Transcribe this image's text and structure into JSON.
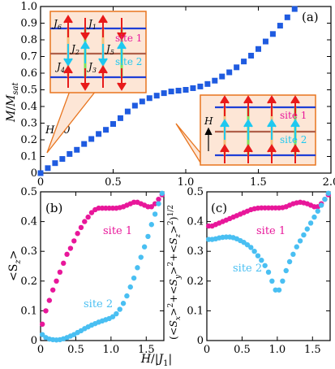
{
  "colors": {
    "magnetization": "#1f5be0",
    "site1": "#e8179a",
    "site2": "#49bff2",
    "inset_border": "#e8751f",
    "inset_fill": "#fde6d6",
    "chain_blue": "#1f3fd6",
    "chain_brown": "#b0604a",
    "rung_green": "#7fe35a",
    "spin_red": "#e81a1a",
    "spin_blue": "#1ec8f0"
  },
  "chart_data": [
    {
      "panel": "(a)",
      "type": "scatter",
      "xlabel": "",
      "ylabel": "M/M_sat",
      "xlim": [
        0,
        2.0
      ],
      "ylim": [
        0,
        1.0
      ],
      "xticks": [
        "0",
        "0.5",
        "1.0",
        "1.5",
        "2.0"
      ],
      "yticks": [
        "0",
        "0.1",
        "0.2",
        "0.3",
        "0.4",
        "0.5",
        "0.6",
        "0.7",
        "0.8",
        "0.9",
        "1.0"
      ],
      "annotations": [
        "H=0"
      ],
      "marker": "square",
      "series": [
        {
          "x": [
            0.0,
            0.05,
            0.1,
            0.15,
            0.2,
            0.25,
            0.3,
            0.35,
            0.4,
            0.45,
            0.5,
            0.55,
            0.6,
            0.65,
            0.7,
            0.75,
            0.8,
            0.85,
            0.9,
            0.95,
            1.0,
            1.05,
            1.1,
            1.15,
            1.2,
            1.25,
            1.3,
            1.35,
            1.4,
            1.45,
            1.5,
            1.55,
            1.6,
            1.65,
            1.7,
            1.75
          ],
          "y": [
            0.0,
            0.03,
            0.06,
            0.085,
            0.115,
            0.14,
            0.175,
            0.205,
            0.235,
            0.26,
            0.295,
            0.33,
            0.37,
            0.405,
            0.43,
            0.45,
            0.465,
            0.48,
            0.49,
            0.495,
            0.5,
            0.51,
            0.52,
            0.535,
            0.555,
            0.58,
            0.605,
            0.635,
            0.67,
            0.705,
            0.745,
            0.79,
            0.835,
            0.885,
            0.935,
            0.985
          ]
        }
      ],
      "inset_left": {
        "couplings": [
          "J6",
          "J1",
          "J2",
          "J5",
          "J4",
          "J3"
        ],
        "site_labels": [
          "site 1",
          "site 2"
        ]
      },
      "inset_right": {
        "field_label": "H",
        "site_labels": [
          "site 1",
          "site 2"
        ]
      }
    },
    {
      "panel": "(b)",
      "type": "scatter",
      "xlabel": "H/|J1|",
      "ylabel": "<Sz>",
      "xlim": [
        0,
        1.75
      ],
      "ylim": [
        0,
        0.5
      ],
      "xticks": [
        "0",
        "0.5",
        "1.0",
        "1.5"
      ],
      "yticks": [
        "0",
        "0.1",
        "0.2",
        "0.3",
        "0.4",
        "0.5"
      ],
      "series": [
        {
          "name": "site 1",
          "x": [
            0.025,
            0.075,
            0.125,
            0.175,
            0.225,
            0.275,
            0.325,
            0.375,
            0.425,
            0.475,
            0.525,
            0.575,
            0.625,
            0.675,
            0.725,
            0.775,
            0.825,
            0.875,
            0.925,
            0.975,
            1.025,
            1.075,
            1.125,
            1.175,
            1.225,
            1.275,
            1.325,
            1.375,
            1.425,
            1.475,
            1.525,
            1.575,
            1.625,
            1.675,
            1.725
          ],
          "y": [
            0.055,
            0.1,
            0.135,
            0.17,
            0.2,
            0.23,
            0.26,
            0.29,
            0.31,
            0.335,
            0.36,
            0.38,
            0.4,
            0.415,
            0.43,
            0.44,
            0.445,
            0.445,
            0.445,
            0.445,
            0.445,
            0.445,
            0.447,
            0.45,
            0.455,
            0.46,
            0.465,
            0.465,
            0.46,
            0.455,
            0.45,
            0.45,
            0.46,
            0.475,
            0.49
          ]
        },
        {
          "name": "site 2",
          "x": [
            0.025,
            0.075,
            0.125,
            0.175,
            0.225,
            0.275,
            0.325,
            0.375,
            0.425,
            0.475,
            0.525,
            0.575,
            0.625,
            0.675,
            0.725,
            0.775,
            0.825,
            0.875,
            0.925,
            0.975,
            1.025,
            1.075,
            1.125,
            1.175,
            1.225,
            1.275,
            1.325,
            1.375,
            1.425,
            1.475,
            1.525,
            1.575,
            1.625,
            1.675,
            1.725
          ],
          "y": [
            0.02,
            0.01,
            0.005,
            0.003,
            0.002,
            0.003,
            0.006,
            0.01,
            0.015,
            0.02,
            0.027,
            0.033,
            0.04,
            0.046,
            0.052,
            0.057,
            0.062,
            0.066,
            0.07,
            0.074,
            0.08,
            0.09,
            0.105,
            0.125,
            0.15,
            0.18,
            0.21,
            0.245,
            0.28,
            0.315,
            0.35,
            0.39,
            0.425,
            0.46,
            0.495
          ]
        }
      ]
    },
    {
      "panel": "(c)",
      "type": "scatter",
      "xlabel": "",
      "ylabel": "(<Sx>^2+<Sy>^2+<Sz>^2)^1/2",
      "xlim": [
        0,
        1.75
      ],
      "ylim": [
        0,
        0.5
      ],
      "xticks": [
        "0",
        "0.5",
        "1.0",
        "1.5"
      ],
      "yticks": [
        "0",
        "0.1",
        "0.2",
        "0.3",
        "0.4",
        "0.5"
      ],
      "series": [
        {
          "name": "site 1",
          "x": [
            0.025,
            0.075,
            0.125,
            0.175,
            0.225,
            0.275,
            0.325,
            0.375,
            0.425,
            0.475,
            0.525,
            0.575,
            0.625,
            0.675,
            0.725,
            0.775,
            0.825,
            0.875,
            0.925,
            0.975,
            1.025,
            1.075,
            1.125,
            1.175,
            1.225,
            1.275,
            1.325,
            1.375,
            1.425,
            1.475,
            1.525,
            1.575,
            1.625,
            1.675,
            1.725
          ],
          "y": [
            0.385,
            0.385,
            0.39,
            0.395,
            0.4,
            0.405,
            0.41,
            0.415,
            0.42,
            0.425,
            0.43,
            0.435,
            0.44,
            0.443,
            0.445,
            0.446,
            0.446,
            0.446,
            0.446,
            0.446,
            0.446,
            0.447,
            0.45,
            0.455,
            0.46,
            0.463,
            0.465,
            0.463,
            0.46,
            0.455,
            0.45,
            0.45,
            0.46,
            0.475,
            0.49
          ]
        },
        {
          "name": "site 2",
          "x": [
            0.025,
            0.075,
            0.125,
            0.175,
            0.225,
            0.275,
            0.325,
            0.375,
            0.425,
            0.475,
            0.525,
            0.575,
            0.625,
            0.675,
            0.725,
            0.775,
            0.825,
            0.875,
            0.925,
            0.975,
            1.025,
            1.075,
            1.125,
            1.175,
            1.225,
            1.275,
            1.325,
            1.375,
            1.425,
            1.475,
            1.525,
            1.575,
            1.625,
            1.675,
            1.725
          ],
          "y": [
            0.34,
            0.34,
            0.342,
            0.345,
            0.347,
            0.348,
            0.348,
            0.346,
            0.342,
            0.336,
            0.33,
            0.322,
            0.313,
            0.3,
            0.285,
            0.27,
            0.252,
            0.23,
            0.2,
            0.17,
            0.17,
            0.2,
            0.235,
            0.265,
            0.29,
            0.315,
            0.335,
            0.355,
            0.375,
            0.395,
            0.415,
            0.435,
            0.455,
            0.475,
            0.495
          ]
        }
      ]
    }
  ],
  "labels": {
    "panel_a": "(a)",
    "panel_b": "(b)",
    "panel_c": "(c)",
    "ylabel_a_M": "M",
    "ylabel_a_slash": "/",
    "ylabel_a_Msat": "M",
    "ylabel_a_sat": "sat",
    "h_zero": "H=0",
    "ylabel_b": "<S",
    "ylabel_b_sub": "z",
    "ylabel_b_close": ">",
    "xlabel_H": "H",
    "xlabel_slash": "/|",
    "xlabel_J": "J",
    "xlabel_J_sub": "1",
    "xlabel_close": "|",
    "ylabel_c": "(<S_x>^2+<S_y>^2+<S_z>^2)^1/2",
    "b_site1": "site 1",
    "b_site2": "site 2",
    "c_site1": "site 1",
    "c_site2": "site 2",
    "inL_J6": "J",
    "inL_J6s": "6",
    "inL_J1": "J",
    "inL_J1s": "1",
    "inL_J2": "J",
    "inL_J2s": "2",
    "inL_J5": "J",
    "inL_J5s": "5",
    "inL_J4": "J",
    "inL_J4s": "4",
    "inL_J3": "J",
    "inL_J3s": "3",
    "inL_site1": "site 1",
    "inL_site2": "site 2",
    "inR_H": "H",
    "inR_site1": "site 1",
    "inR_site2": "site 2"
  }
}
